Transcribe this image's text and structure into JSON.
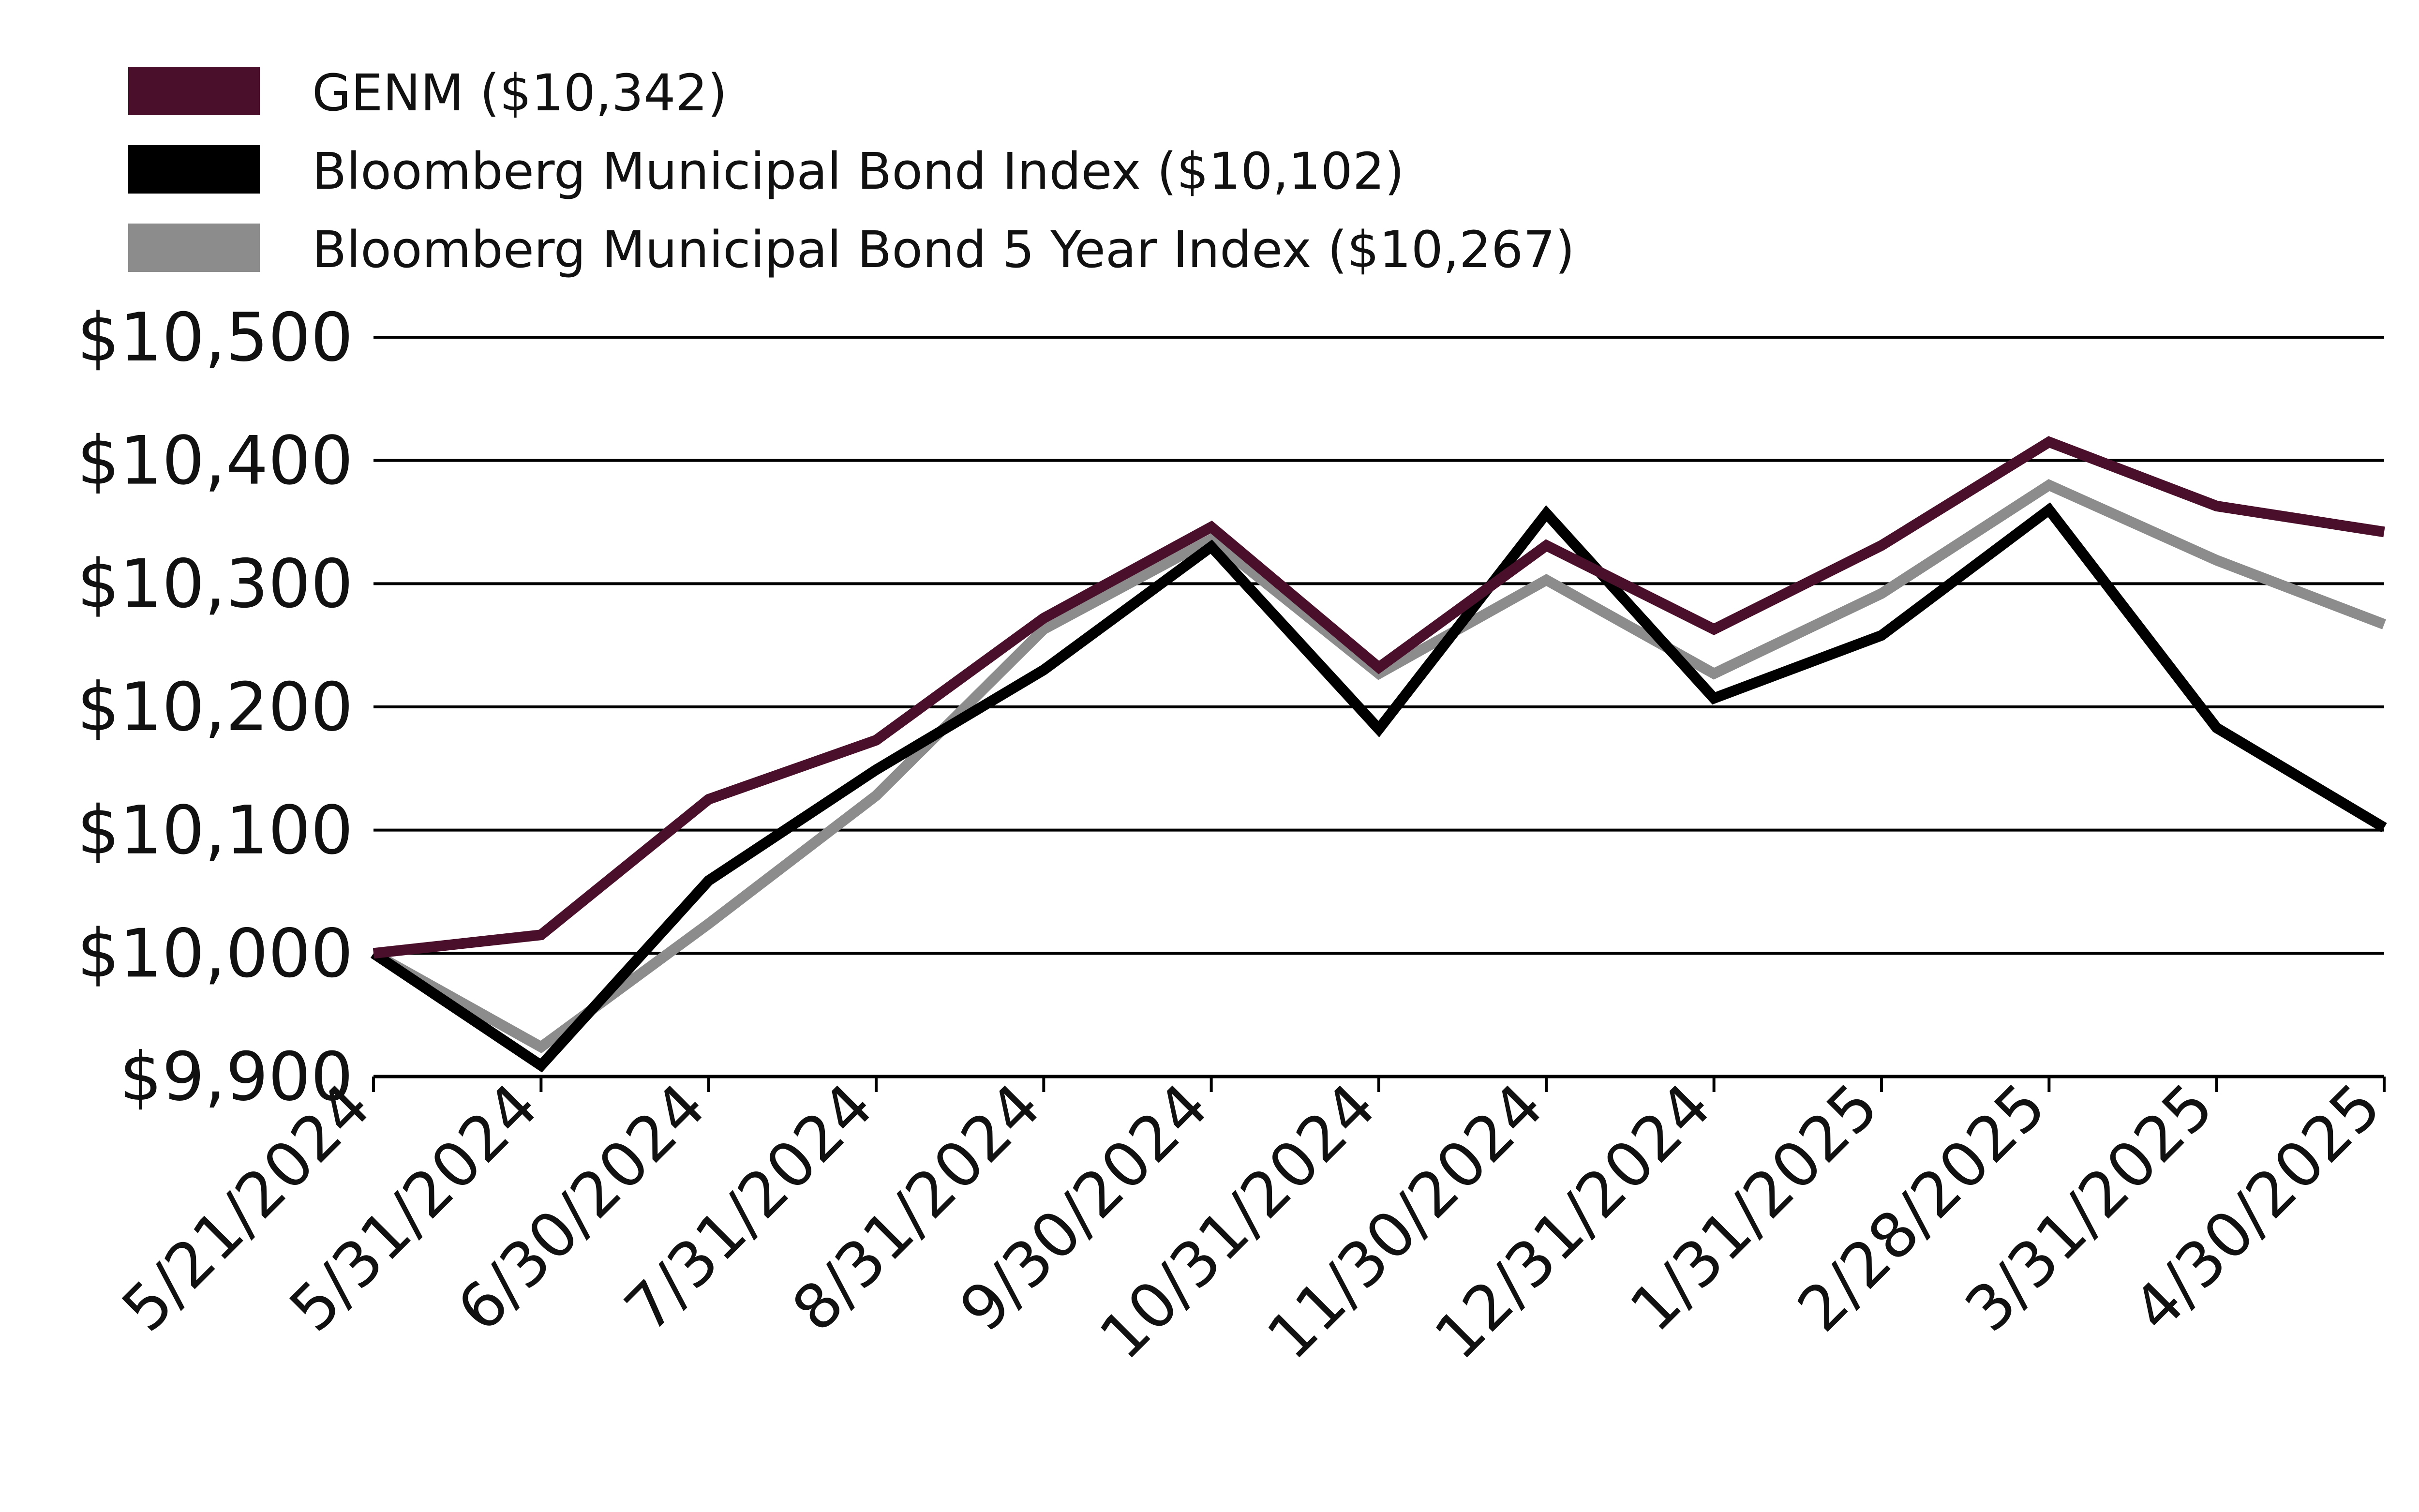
{
  "chart_data": {
    "type": "line",
    "title": "",
    "xlabel": "",
    "ylabel": "",
    "ylim": [
      9900,
      10500
    ],
    "yticks": [
      9900,
      10000,
      10100,
      10200,
      10300,
      10400,
      10500
    ],
    "ytick_labels": [
      "$9,900",
      "$10,000",
      "$10,100",
      "$10,200",
      "$10,300",
      "$10,400",
      "$10,500"
    ],
    "grid": true,
    "legend_position": "top-left",
    "categories": [
      "5/21/2024",
      "5/31/2024",
      "6/30/2024",
      "7/31/2024",
      "8/31/2024",
      "9/30/2024",
      "10/31/2024",
      "11/30/2024",
      "12/31/2024",
      "1/31/2025",
      "2/28/2025",
      "3/31/2025",
      "4/30/2025"
    ],
    "series": [
      {
        "name": "GENM ($10,342)",
        "color": "#4a0f2b",
        "values": [
          10000,
          10015,
          10125,
          10173,
          10272,
          10346,
          10232,
          10331,
          10263,
          10331,
          10415,
          10363,
          10342
        ]
      },
      {
        "name": "Bloomberg Municipal Bond Index ($10,102)",
        "color": "#000000",
        "values": [
          10000,
          9909,
          10059,
          10149,
          10230,
          10330,
          10182,
          10357,
          10207,
          10258,
          10360,
          10183,
          10102
        ]
      },
      {
        "name": "Bloomberg Municipal Bond 5 Year Index ($10,267)",
        "color": "#8c8c8c",
        "values": [
          10000,
          9924,
          10024,
          10128,
          10263,
          10336,
          10227,
          10303,
          10227,
          10292,
          10380,
          10319,
          10267
        ]
      }
    ]
  }
}
